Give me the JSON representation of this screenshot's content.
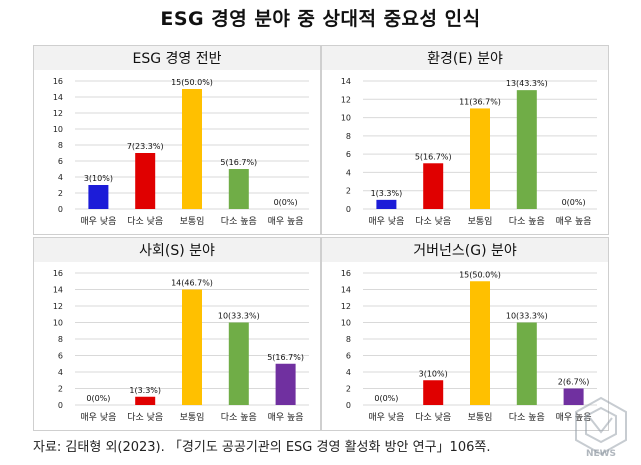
{
  "title": "ESG 경영 분야 중 상대적 중요성 인식",
  "source": "자료: 김태형 외(2023). 「경기도 공공기관의 ESG 경영 활성화 방안 연구」106쪽.",
  "logo_text": "NEWS",
  "colors": {
    "panel_bg": "#f2f2f2",
    "grid": "#d9d9d9",
    "border": "#cfcfcf"
  },
  "chart_data": [
    {
      "type": "bar",
      "title": "ESG 경영 전반",
      "categories": [
        "매우 낮음",
        "다소 낮음",
        "보통임",
        "다소 높음",
        "매우 높음"
      ],
      "values": [
        3,
        7,
        15,
        5,
        0
      ],
      "data_labels": [
        "3(10%)",
        "7(23.3%)",
        "15(50.0%)",
        "5(16.7%)",
        "0(0%)"
      ],
      "colors": [
        "#1c1cd8",
        "#e00000",
        "#ffc000",
        "#70ad47",
        "#7030a0"
      ],
      "ylim": [
        0,
        16
      ],
      "yticks": [
        0,
        2,
        4,
        6,
        8,
        10,
        12,
        14,
        16
      ],
      "grid": true
    },
    {
      "type": "bar",
      "title": "환경(E) 분야",
      "categories": [
        "매우 낮음",
        "다소 낮음",
        "보통임",
        "다소 높음",
        "매우 높음"
      ],
      "values": [
        1,
        5,
        11,
        13,
        0
      ],
      "data_labels": [
        "1(3.3%)",
        "5(16.7%)",
        "11(36.7%)",
        "13(43.3%)",
        "0(0%)"
      ],
      "colors": [
        "#1c1cd8",
        "#e00000",
        "#ffc000",
        "#70ad47",
        "#7030a0"
      ],
      "ylim": [
        0,
        14
      ],
      "yticks": [
        0,
        2,
        4,
        6,
        8,
        10,
        12,
        14
      ],
      "grid": true
    },
    {
      "type": "bar",
      "title": "사회(S) 분야",
      "categories": [
        "매우 낮음",
        "다소 낮음",
        "보통임",
        "다소 높음",
        "매우 높음"
      ],
      "values": [
        0,
        1,
        14,
        10,
        5
      ],
      "data_labels": [
        "0(0%)",
        "1(3.3%)",
        "14(46.7%)",
        "10(33.3%)",
        "5(16.7%)"
      ],
      "colors": [
        "#1c1cd8",
        "#e00000",
        "#ffc000",
        "#70ad47",
        "#7030a0"
      ],
      "ylim": [
        0,
        16
      ],
      "yticks": [
        0,
        2,
        4,
        6,
        8,
        10,
        12,
        14,
        16
      ],
      "grid": true
    },
    {
      "type": "bar",
      "title": "거버넌스(G) 분야",
      "categories": [
        "매우 낮음",
        "다소 낮음",
        "보통임",
        "다소 높음",
        "매우 높음"
      ],
      "values": [
        0,
        3,
        15,
        10,
        2
      ],
      "data_labels": [
        "0(0%)",
        "3(10%)",
        "15(50.0%)",
        "10(33.3%)",
        "2(6.7%)"
      ],
      "colors": [
        "#1c1cd8",
        "#e00000",
        "#ffc000",
        "#70ad47",
        "#7030a0"
      ],
      "ylim": [
        0,
        16
      ],
      "yticks": [
        0,
        2,
        4,
        6,
        8,
        10,
        12,
        14,
        16
      ],
      "grid": true
    }
  ]
}
